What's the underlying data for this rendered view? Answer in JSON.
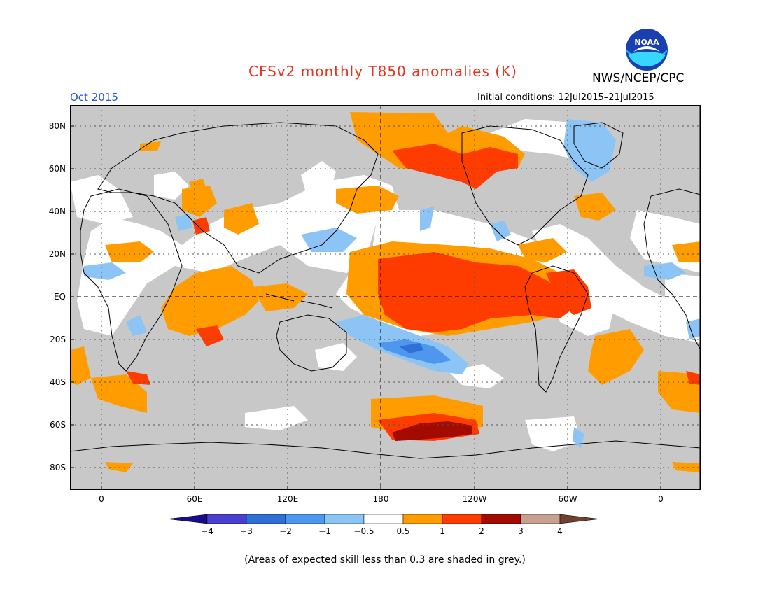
{
  "title": "CFSv2 monthly T850 anomalies (K)",
  "organization": "NWS/NCEP/CPC",
  "logo": {
    "text": "NOAA",
    "icon": "noaa-logo"
  },
  "valid_month": "Oct 2015",
  "initial_conditions": "Initial conditions: 12Jul2015–21Jul2015",
  "lat_labels": [
    "80N",
    "60N",
    "40N",
    "20N",
    "EQ",
    "20S",
    "40S",
    "60S",
    "80S"
  ],
  "lon_labels": [
    "0",
    "60E",
    "120E",
    "180",
    "120W",
    "60W",
    "0"
  ],
  "colorbar": {
    "labels": [
      "−4",
      "−3",
      "−2",
      "−1",
      "−0.5",
      "0.5",
      "1",
      "2",
      "3",
      "4"
    ],
    "colors": [
      "#1a0a8c",
      "#4a3fcf",
      "#2f6fd6",
      "#4d98ee",
      "#8cc4f5",
      "#ffffff",
      "#ff9d00",
      "#ff3c00",
      "#a30a00",
      "#c8a090",
      "#704030"
    ]
  },
  "footnote": "(Areas of expected skill less than 0.3 are shaded in grey.)",
  "colors": {
    "grey_skill": "#c8c8c8",
    "title_red": "#e8321e",
    "date_blue": "#2255dd"
  }
}
